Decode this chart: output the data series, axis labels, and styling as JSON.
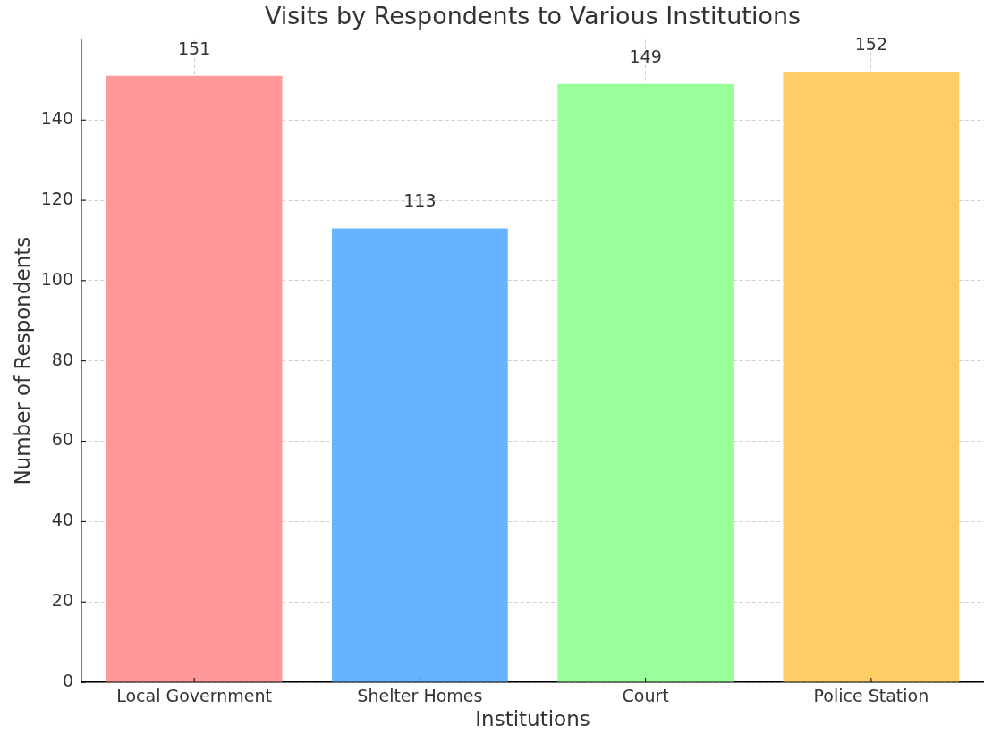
{
  "chart_data": {
    "type": "bar",
    "title": "Visits by Respondents to Various Institutions",
    "xlabel": "Institutions",
    "ylabel": "Number of Respondents",
    "categories": [
      "Local Government",
      "Shelter Homes",
      "Court",
      "Police Station"
    ],
    "values": [
      151,
      113,
      149,
      152
    ],
    "colors": [
      "#ff9999",
      "#66b3ff",
      "#99ff99",
      "#ffcc66"
    ],
    "ylim": [
      0,
      160
    ],
    "yticks": [
      0,
      20,
      40,
      60,
      80,
      100,
      120,
      140
    ],
    "grid": true,
    "data_labels": true
  }
}
